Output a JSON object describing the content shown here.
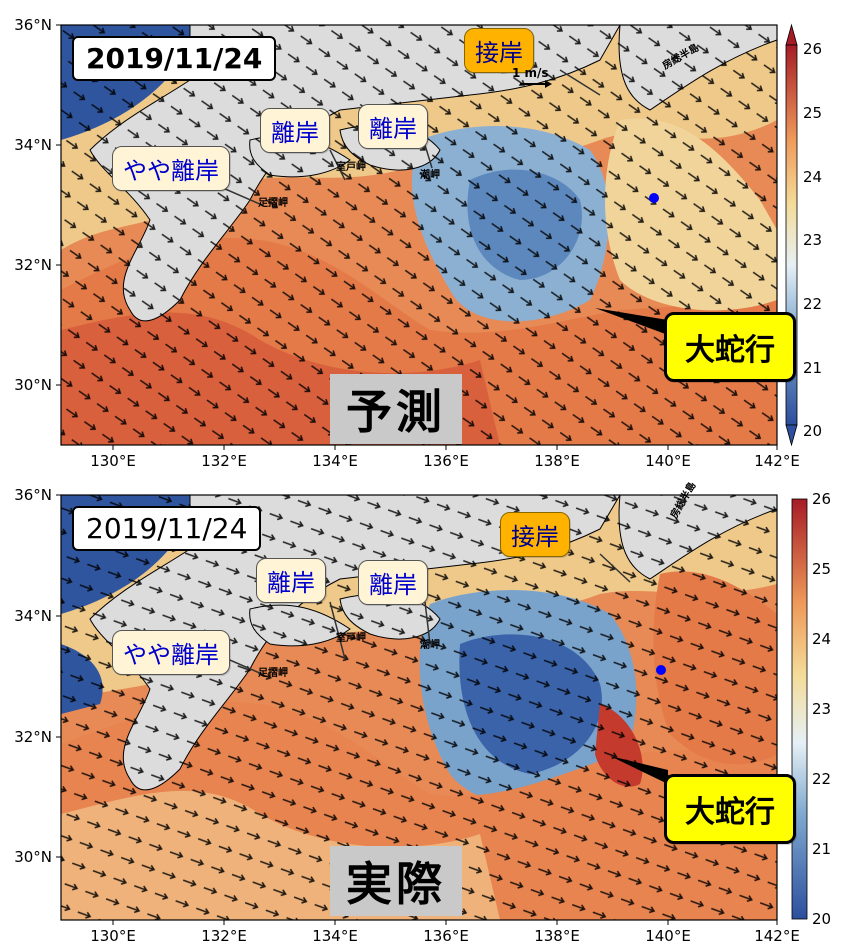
{
  "colors": {
    "warm": "#d96a45",
    "mid": "#f0d9a0",
    "cool": "#3c6eaa",
    "land": "#dcdcdc",
    "coast_water": "#1f3f8a",
    "arrow": "#000000",
    "kuroshio_point": "#0000ff",
    "callout_pale": "#fff4d6",
    "callout_orange": "#ffb300",
    "callout_yellow": "#ffff00"
  },
  "axes": {
    "y_ticks": [
      "30°N",
      "32°N",
      "34°N",
      "36°N"
    ],
    "x_ticks": [
      "130°E",
      "132°E",
      "134°E",
      "136°E",
      "138°E",
      "140°E",
      "142°E"
    ]
  },
  "colorbar": {
    "ticks": [
      "20",
      "21",
      "22",
      "23",
      "24",
      "25",
      "26"
    ],
    "range": [
      20,
      26
    ]
  },
  "panels": [
    {
      "date": "2019/11/24",
      "caption": "予測",
      "labels": {
        "yaya_riban": "やや離岸",
        "riban1": "離岸",
        "riban2": "離岸",
        "setsugan": "接岸",
        "daidakou": "大蛇行"
      },
      "places": {
        "ashizuri": "足摺岬",
        "muroto": "室戸岬",
        "shionomisaki": "潮岬",
        "boso": "房総半島"
      },
      "scale": "1 m/s"
    },
    {
      "date": "2019/11/24",
      "caption": "実際",
      "labels": {
        "yaya_riban": "やや離岸",
        "riban1": "離岸",
        "riban2": "離岸",
        "setsugan": "接岸",
        "daidakou": "大蛇行"
      },
      "places": {
        "ashizuri": "足摺岬",
        "muroto": "室戸岬",
        "shionomisaki": "潮岬",
        "boso": "房総半島"
      }
    }
  ]
}
